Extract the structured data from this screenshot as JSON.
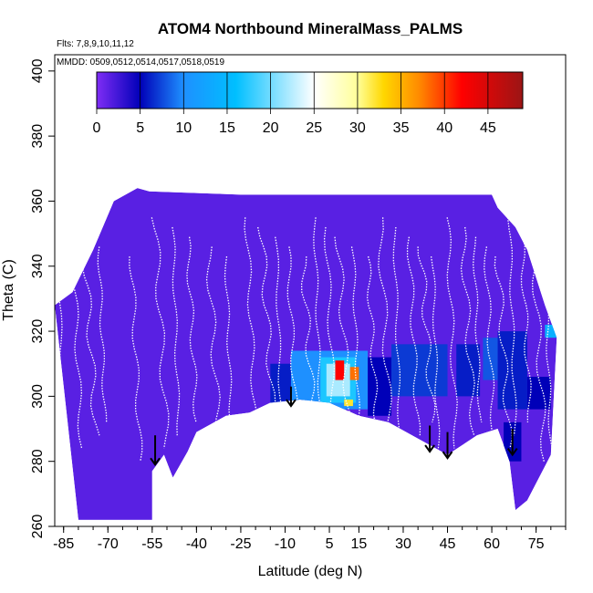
{
  "chart_data": {
    "type": "heatmap",
    "title": "ATOM4 Northbound MineralMass_PALMS",
    "subtitle_flights": "Flts: 7,8,9,10,11,12",
    "subtitle_dates": "MMDD: 0509,0512,0514,0517,0518,0519",
    "xlabel": "Latitude (deg N)",
    "ylabel": "Theta (C)",
    "xlim": [
      -88,
      85
    ],
    "ylim": [
      260,
      405
    ],
    "x_ticks": [
      -85,
      -70,
      -55,
      -40,
      -25,
      -10,
      5,
      15,
      30,
      45,
      60,
      75
    ],
    "x_minor_step": 5,
    "y_ticks": [
      260,
      280,
      300,
      320,
      340,
      360,
      380,
      400
    ],
    "colorbar": {
      "min": 0,
      "max": 49,
      "ticks": [
        0,
        5,
        10,
        15,
        20,
        25,
        30,
        35,
        40,
        45
      ],
      "colors": [
        "#7f2df5",
        "#0000b8",
        "#1e90ff",
        "#00bfff",
        "#ffffff",
        "#ffff99",
        "#ffd700",
        "#ff8c00",
        "#ff0000",
        "#9b1515"
      ],
      "stops": [
        0,
        5,
        10,
        16,
        25,
        30,
        33,
        37,
        42,
        49
      ]
    },
    "background_value": 1.5,
    "floor": [
      [
        -80,
        262
      ],
      [
        -55,
        262
      ],
      [
        -55,
        277
      ],
      [
        -51,
        282
      ],
      [
        -48,
        275
      ],
      [
        -43,
        283
      ],
      [
        -40,
        289
      ],
      [
        -30,
        294
      ],
      [
        -22,
        295
      ],
      [
        -15,
        298
      ],
      [
        -5,
        299
      ],
      [
        5,
        298
      ],
      [
        15,
        294
      ],
      [
        25,
        292
      ],
      [
        35,
        287
      ],
      [
        45,
        282
      ],
      [
        55,
        288
      ],
      [
        62,
        290
      ],
      [
        66,
        280
      ],
      [
        68,
        265
      ],
      [
        72,
        268
      ],
      [
        76,
        275
      ],
      [
        80,
        282
      ]
    ],
    "ceiling": [
      [
        -88,
        328
      ],
      [
        -82,
        332
      ],
      [
        -75,
        345
      ],
      [
        -68,
        360
      ],
      [
        -60,
        364
      ],
      [
        -56,
        363
      ],
      [
        -25,
        362
      ],
      [
        -20,
        362
      ],
      [
        50,
        362
      ],
      [
        60,
        362
      ],
      [
        62,
        358
      ],
      [
        68,
        352
      ],
      [
        72,
        345
      ],
      [
        78,
        328
      ],
      [
        82,
        318
      ]
    ],
    "regions": [
      {
        "lat": [
          -15,
          -3
        ],
        "theta": [
          298,
          310
        ],
        "value": 6
      },
      {
        "lat": [
          -8,
          18
        ],
        "theta": [
          296,
          314
        ],
        "value": 10
      },
      {
        "lat": [
          2,
          14
        ],
        "theta": [
          298,
          312
        ],
        "value": 17
      },
      {
        "lat": [
          4,
          12
        ],
        "theta": [
          300,
          310
        ],
        "value": 22
      },
      {
        "lat": [
          7,
          10
        ],
        "theta": [
          305,
          311
        ],
        "value": 42
      },
      {
        "lat": [
          12,
          15
        ],
        "theta": [
          305,
          309
        ],
        "value": 38
      },
      {
        "lat": [
          10,
          13
        ],
        "theta": [
          297,
          299
        ],
        "value": 32
      },
      {
        "lat": [
          18,
          26
        ],
        "theta": [
          294,
          312
        ],
        "value": 5
      },
      {
        "lat": [
          26,
          45
        ],
        "theta": [
          300,
          316
        ],
        "value": 7
      },
      {
        "lat": [
          48,
          56
        ],
        "theta": [
          300,
          316
        ],
        "value": 6
      },
      {
        "lat": [
          57,
          62
        ],
        "theta": [
          305,
          318
        ],
        "value": 8
      },
      {
        "lat": [
          62,
          72
        ],
        "theta": [
          296,
          320
        ],
        "value": 6
      },
      {
        "lat": [
          64,
          70
        ],
        "theta": [
          280,
          292
        ],
        "value": 5
      },
      {
        "lat": [
          72,
          80
        ],
        "theta": [
          296,
          306
        ],
        "value": 5
      },
      {
        "lat": [
          78,
          84
        ],
        "theta": [
          318,
          322
        ],
        "value": 14
      }
    ],
    "arrows": [
      {
        "lat": -54,
        "theta_top": 288,
        "theta_tip": 279
      },
      {
        "lat": -8,
        "theta_top": 303,
        "theta_tip": 297
      },
      {
        "lat": 39,
        "theta_top": 291,
        "theta_tip": 283
      },
      {
        "lat": 45,
        "theta_top": 289,
        "theta_tip": 281
      },
      {
        "lat": 67,
        "theta_top": 290,
        "theta_tip": 282
      }
    ],
    "flight_track_latitudes": [
      -87,
      -82,
      -78,
      -73,
      -62,
      -54,
      -48,
      -43,
      -36,
      -30,
      -23,
      -18,
      -13,
      -9,
      -4,
      0,
      4,
      8,
      13,
      18,
      22,
      27,
      32,
      36,
      40,
      45,
      50,
      54,
      58,
      62,
      66,
      70,
      74,
      78
    ]
  }
}
